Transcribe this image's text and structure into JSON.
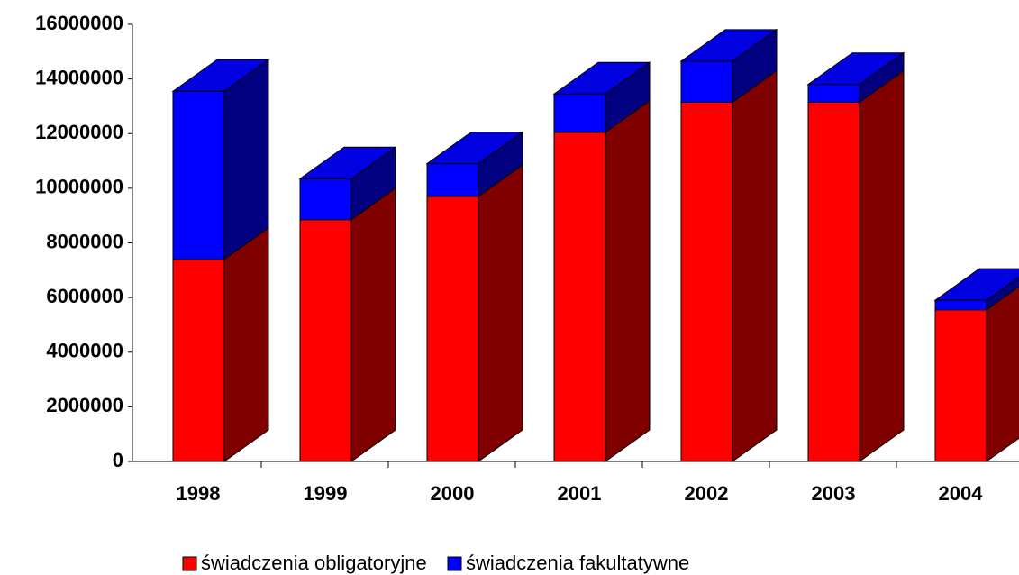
{
  "chart_data": {
    "type": "bar",
    "stacked": true,
    "three_d": true,
    "categories": [
      "1998",
      "1999",
      "2000",
      "2001",
      "2002",
      "2003",
      "2004"
    ],
    "series": [
      {
        "name": "świadczenia obligatoryjne",
        "color": "#ff0000",
        "side_color": "#800000",
        "values": [
          7400000,
          8850000,
          9700000,
          12050000,
          13150000,
          13150000,
          5550000
        ]
      },
      {
        "name": "świadczenia fakultatywne",
        "color": "#0000ff",
        "side_color": "#000080",
        "values": [
          6150000,
          1500000,
          1200000,
          1400000,
          1500000,
          650000,
          350000
        ]
      }
    ],
    "ylim": [
      0,
      16000000
    ],
    "yticks": [
      0,
      2000000,
      4000000,
      6000000,
      8000000,
      10000000,
      12000000,
      14000000,
      16000000
    ],
    "legend": "bottom"
  }
}
